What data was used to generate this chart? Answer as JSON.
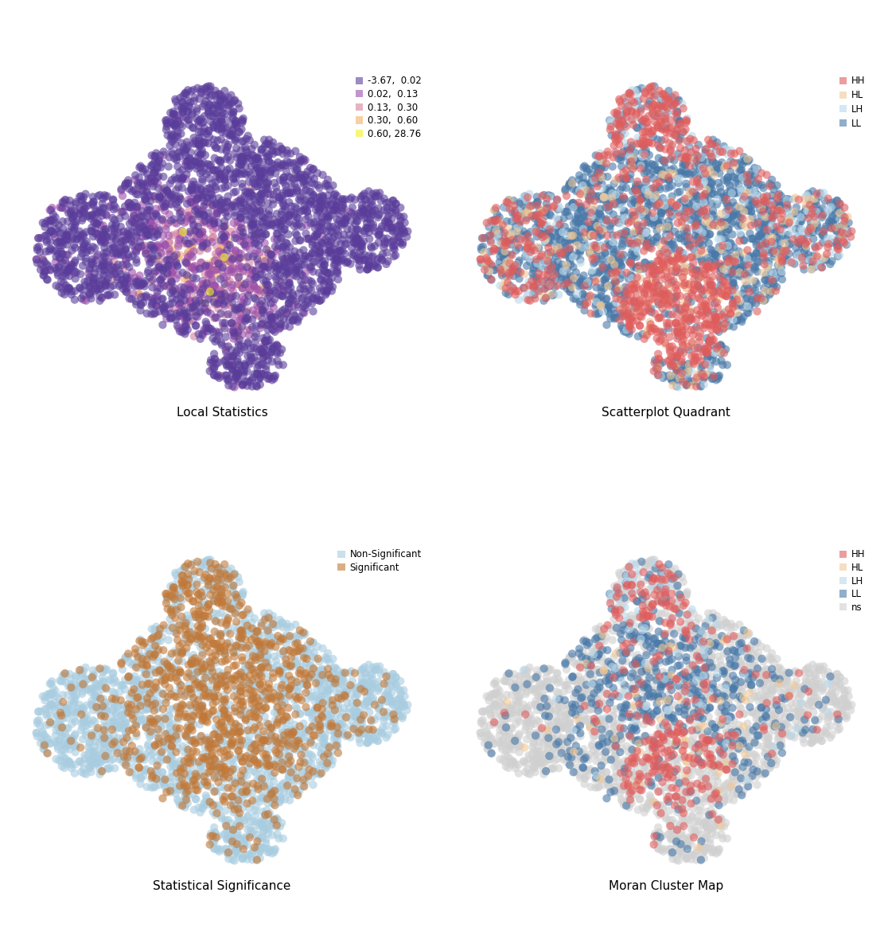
{
  "subplot_titles": [
    "Local Statistics",
    "Scatterplot Quadrant",
    "Statistical Significance",
    "Moran Cluster Map"
  ],
  "legend1_labels": [
    "-3.67,  0.02",
    "0.02,  0.13",
    "0.13,  0.30",
    "0.30,  0.60",
    "0.60, 28.76"
  ],
  "legend1_colors": [
    "#5a3d9a",
    "#9b4faa",
    "#d4829e",
    "#f0b06a",
    "#f0f020"
  ],
  "legend2_labels": [
    "HH",
    "HL",
    "LH",
    "LL"
  ],
  "legend2_colors": [
    "#e05c5c",
    "#f0c896",
    "#b8d8ea",
    "#4878a8"
  ],
  "legend3_labels": [
    "Non-Significant",
    "Significant"
  ],
  "legend3_colors": [
    "#a8cce0",
    "#c07838"
  ],
  "legend4_labels": [
    "HH",
    "HL",
    "LH",
    "LL",
    "ns"
  ],
  "legend4_colors": [
    "#e05c5c",
    "#f0c896",
    "#b8d8ea",
    "#4878a8",
    "#d0d0d0"
  ],
  "n_points": 3000,
  "alpha": 0.6,
  "marker_size": 55,
  "bg_color": "#ffffff",
  "seed": 42
}
